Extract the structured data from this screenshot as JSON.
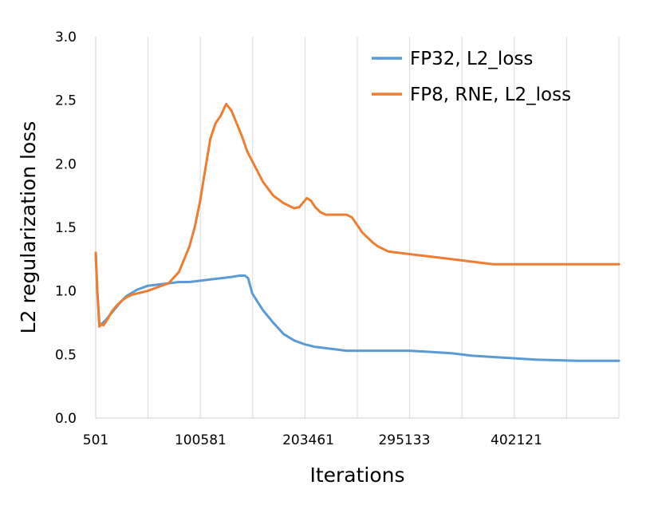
{
  "chart_data": {
    "type": "line",
    "xlabel": "Iterations",
    "ylabel": "L2 regularization loss",
    "ylim": [
      0,
      3
    ],
    "yticks": [
      "0.0",
      "0.5",
      "1.0",
      "1.5",
      "2.0",
      "2.5",
      "3.0"
    ],
    "xticks": [
      {
        "label": "501",
        "value": 501
      },
      {
        "label": "100581",
        "value": 100581
      },
      {
        "label": "203461",
        "value": 203461
      },
      {
        "label": "295133",
        "value": 295133
      },
      {
        "label": "402121",
        "value": 402121
      }
    ],
    "xlim": [
      501,
      500000
    ],
    "grid": "vertical",
    "legend_position": "top-right",
    "colors": {
      "fp32": "#5b9bd5",
      "fp8": "#ed7d31",
      "grid": "#d9d9d9"
    },
    "series": [
      {
        "name": "FP32, L2_loss",
        "color": "#5b9bd5",
        "x": [
          501,
          2000,
          4000,
          6000,
          10000,
          15000,
          20000,
          25000,
          30000,
          40000,
          50000,
          60000,
          70000,
          80000,
          90000,
          100000,
          110000,
          120000,
          130000,
          138000,
          143000,
          146000,
          150000,
          160000,
          170000,
          180000,
          190000,
          200000,
          210000,
          220000,
          230000,
          240000,
          260000,
          280000,
          300000,
          320000,
          340000,
          360000,
          380000,
          400000,
          420000,
          440000,
          460000,
          480000,
          500000
        ],
        "y": [
          1.3,
          1.0,
          0.74,
          0.74,
          0.77,
          0.82,
          0.87,
          0.92,
          0.96,
          1.01,
          1.04,
          1.05,
          1.06,
          1.07,
          1.07,
          1.08,
          1.09,
          1.1,
          1.11,
          1.12,
          1.12,
          1.1,
          0.98,
          0.85,
          0.75,
          0.66,
          0.61,
          0.58,
          0.56,
          0.55,
          0.54,
          0.53,
          0.53,
          0.53,
          0.53,
          0.52,
          0.51,
          0.49,
          0.48,
          0.47,
          0.46,
          0.455,
          0.45,
          0.45,
          0.45
        ]
      },
      {
        "name": "FP8, RNE, L2_loss",
        "color": "#ed7d31",
        "x": [
          501,
          2000,
          4000,
          6000,
          8000,
          12000,
          16000,
          20000,
          25000,
          30000,
          35000,
          40000,
          50000,
          60000,
          70000,
          80000,
          85000,
          90000,
          95000,
          100000,
          105000,
          110000,
          115000,
          120000,
          125000,
          130000,
          135000,
          140000,
          145000,
          150000,
          160000,
          170000,
          180000,
          190000,
          195000,
          198000,
          202000,
          206000,
          210000,
          215000,
          220000,
          230000,
          240000,
          245000,
          250000,
          255000,
          260000,
          265000,
          270000,
          280000,
          300000,
          320000,
          340000,
          360000,
          380000,
          400000,
          440000,
          480000,
          500000
        ],
        "y": [
          1.3,
          1.0,
          0.72,
          0.74,
          0.73,
          0.78,
          0.84,
          0.88,
          0.92,
          0.95,
          0.97,
          0.98,
          1.0,
          1.03,
          1.06,
          1.15,
          1.25,
          1.35,
          1.5,
          1.7,
          1.95,
          2.2,
          2.32,
          2.38,
          2.47,
          2.42,
          2.32,
          2.22,
          2.1,
          2.02,
          1.86,
          1.75,
          1.69,
          1.65,
          1.66,
          1.69,
          1.73,
          1.71,
          1.66,
          1.62,
          1.6,
          1.6,
          1.6,
          1.58,
          1.52,
          1.46,
          1.42,
          1.38,
          1.35,
          1.31,
          1.29,
          1.27,
          1.25,
          1.23,
          1.21,
          1.21,
          1.21,
          1.21,
          1.21
        ]
      }
    ]
  }
}
